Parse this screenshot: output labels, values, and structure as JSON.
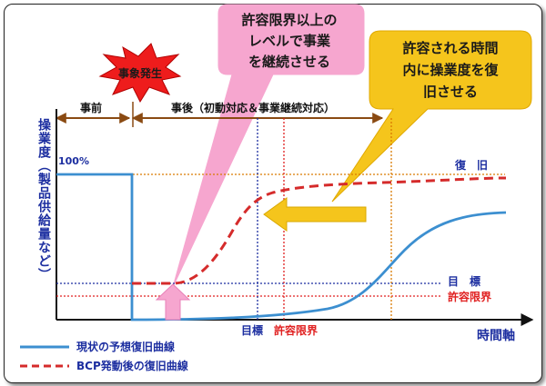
{
  "labels": {
    "event": "事象発生",
    "before": "事前",
    "after": "事後（初動対応＆事業継続対応）",
    "y_axis": "操業度（製品供給量など）",
    "x_axis": "時間軸",
    "pct100": "100%",
    "recovery": "復　旧",
    "target": "目　標",
    "tolerance": "許容限界",
    "target_x": "目標",
    "tolerance_x": "許容限界"
  },
  "callouts": {
    "pink": [
      "許容限界以上の",
      "レベルで事業",
      "を継続させる"
    ],
    "yellow": [
      "許容される時間",
      "内に操業度を復",
      "旧させる"
    ]
  },
  "legend": {
    "current": "現状の予想復旧曲線",
    "bcp": "BCP発動後の復旧曲線"
  },
  "colors": {
    "blue_curve": "#3c8fd0",
    "red_curve": "#d52b2b",
    "navy": "#1c2ea0",
    "red_text": "#e02020",
    "brown": "#8a4a12",
    "pink": "#f6a6cf",
    "yellow": "#f5c51c"
  }
}
